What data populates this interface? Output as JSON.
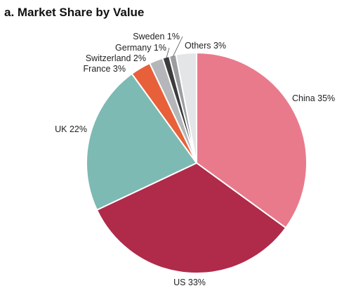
{
  "chart_data": {
    "type": "pie",
    "title": "a. Market Share by Value",
    "slices": [
      {
        "name": "China",
        "value": 35,
        "label": "China 35%",
        "color": "#e97a8c"
      },
      {
        "name": "US",
        "value": 33,
        "label": "US 33%",
        "color": "#b02a4a"
      },
      {
        "name": "UK",
        "value": 22,
        "label": "UK 22%",
        "color": "#7dbab3"
      },
      {
        "name": "France",
        "value": 3,
        "label": "France 3%",
        "color": "#e8603a"
      },
      {
        "name": "Switzerland",
        "value": 2,
        "label": "Switzerland 2%",
        "color": "#b4b6b9"
      },
      {
        "name": "Germany",
        "value": 1,
        "label": "Germany 1%",
        "color": "#3c3c3c"
      },
      {
        "name": "Sweden",
        "value": 1,
        "label": "Sweden 1%",
        "color": "#9b9da0"
      },
      {
        "name": "Others",
        "value": 3,
        "label": "Others 3%",
        "color": "#e4e5e7"
      }
    ],
    "start": "12 o'clock",
    "direction": "clockwise",
    "legend": "none"
  }
}
